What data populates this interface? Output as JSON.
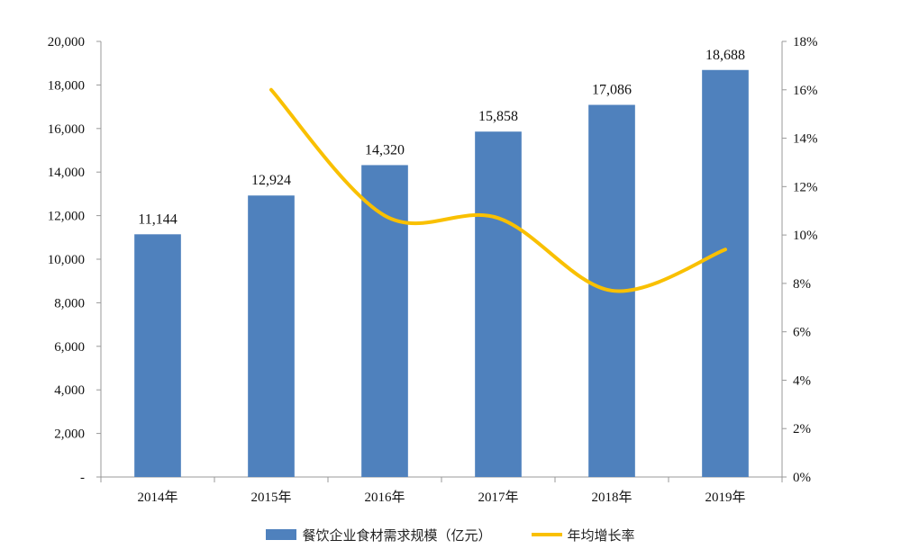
{
  "chart_data": {
    "type": "bar",
    "categories": [
      "2014年",
      "2015年",
      "2016年",
      "2017年",
      "2018年",
      "2019年"
    ],
    "series": [
      {
        "name": "餐饮企业食材需求规模（亿元）",
        "type": "bar",
        "axis": "left",
        "values": [
          11144,
          12924,
          14320,
          15858,
          17086,
          18688
        ],
        "labels": [
          "11,144",
          "12,924",
          "14,320",
          "15,858",
          "17,086",
          "18,688"
        ],
        "color": "#4f81bd"
      },
      {
        "name": "年均增长率",
        "type": "line",
        "axis": "right",
        "values": [
          null,
          16.0,
          10.8,
          10.7,
          7.7,
          9.4
        ],
        "color": "#f9c000"
      }
    ],
    "y_left": {
      "ylim": [
        0,
        20000
      ],
      "ticks": [
        0,
        2000,
        4000,
        6000,
        8000,
        10000,
        12000,
        14000,
        16000,
        18000,
        20000
      ],
      "tick_labels": [
        "-",
        "2,000",
        "4,000",
        "6,000",
        "8,000",
        "10,000",
        "12,000",
        "14,000",
        "16,000",
        "18,000",
        "20,000"
      ]
    },
    "y_right": {
      "ylim": [
        0,
        18
      ],
      "ticks": [
        0,
        2,
        4,
        6,
        8,
        10,
        12,
        14,
        16,
        18
      ],
      "tick_labels": [
        "0%",
        "2%",
        "4%",
        "6%",
        "8%",
        "10%",
        "12%",
        "14%",
        "16%",
        "18%"
      ]
    },
    "grid": false,
    "legend_position": "bottom",
    "title": "",
    "xlabel": "",
    "ylabel": ""
  }
}
